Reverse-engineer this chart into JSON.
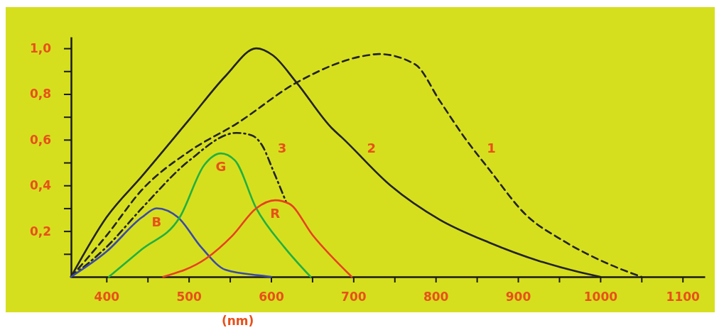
{
  "chart_data": {
    "type": "line",
    "xlabel": "(nm)",
    "xlim": [
      357,
      1127
    ],
    "ylim": [
      0,
      1.05
    ],
    "xticks": [
      400,
      {
        "value": 450,
        "label": null
      },
      500,
      {
        "value": 550,
        "label": null
      },
      600,
      {
        "value": 650,
        "label": null
      },
      700,
      {
        "value": 750,
        "label": null
      },
      800,
      {
        "value": 850,
        "label": null
      },
      900,
      {
        "value": 950,
        "label": null
      },
      1000,
      {
        "value": 1050,
        "label": null
      },
      1100
    ],
    "yticks": [
      {
        "value": 0.1,
        "label": null
      },
      {
        "value": 0.2,
        "label": "0,2"
      },
      {
        "value": 0.3,
        "label": null
      },
      {
        "value": 0.4,
        "label": "0,4"
      },
      {
        "value": 0.5,
        "label": null
      },
      {
        "value": 0.6,
        "label": "0,6"
      },
      {
        "value": 0.7,
        "label": null
      },
      {
        "value": 0.8,
        "label": "0,8"
      },
      {
        "value": 0.9,
        "label": null
      },
      {
        "value": 1.0,
        "label": "1,0"
      }
    ],
    "grid": false,
    "marker": "none",
    "series": [
      {
        "name": "1",
        "color": "#222222",
        "line_style": "dashed",
        "x": [
          357,
          400,
          443,
          501,
          558,
          631,
          718,
          731,
          775,
          805,
          835,
          865,
          910,
          954,
          1014,
          1050
        ],
        "values": [
          0,
          0.18,
          0.38,
          0.55,
          0.67,
          0.85,
          0.97,
          0.975,
          0.93,
          0.77,
          0.61,
          0.47,
          0.27,
          0.16,
          0.05,
          0
        ]
      },
      {
        "name": "2",
        "color": "#222222",
        "line_style": "solid",
        "x": [
          357,
          400,
          443,
          501,
          545,
          582,
          602,
          631,
          674,
          686,
          745,
          805,
          865,
          925,
          975,
          1000
        ],
        "values": [
          0,
          0.26,
          0.44,
          0.69,
          0.88,
          1.0,
          0.97,
          0.85,
          0.65,
          0.61,
          0.4,
          0.25,
          0.15,
          0.07,
          0.02,
          0
        ]
      },
      {
        "name": "3",
        "color": "#222222",
        "line_style": "dashdot",
        "x": [
          357,
          400,
          443,
          501,
          558,
          576,
          590,
          602,
          618
        ],
        "values": [
          0,
          0.13,
          0.3,
          0.51,
          0.63,
          0.62,
          0.57,
          0.47,
          0.33
        ]
      },
      {
        "name": "B",
        "color": "#3a4aa8",
        "line_style": "solid",
        "x": [
          357,
          400,
          443,
          461,
          487,
          515,
          545,
          588,
          600
        ],
        "values": [
          0,
          0.11,
          0.26,
          0.3,
          0.26,
          0.13,
          0.03,
          0.005,
          0
        ]
      },
      {
        "name": "G",
        "color": "#22b040",
        "line_style": "solid",
        "x": [
          403,
          443,
          489,
          519,
          539,
          556,
          582,
          616,
          648
        ],
        "values": [
          0,
          0.12,
          0.26,
          0.49,
          0.54,
          0.51,
          0.3,
          0.13,
          0
        ]
      },
      {
        "name": "R",
        "color": "#e84020",
        "line_style": "solid",
        "x": [
          469,
          521,
          553,
          582,
          605,
          622,
          651,
          698
        ],
        "values": [
          0,
          0.08,
          0.18,
          0.3,
          0.335,
          0.32,
          0.18,
          0
        ]
      }
    ]
  }
}
